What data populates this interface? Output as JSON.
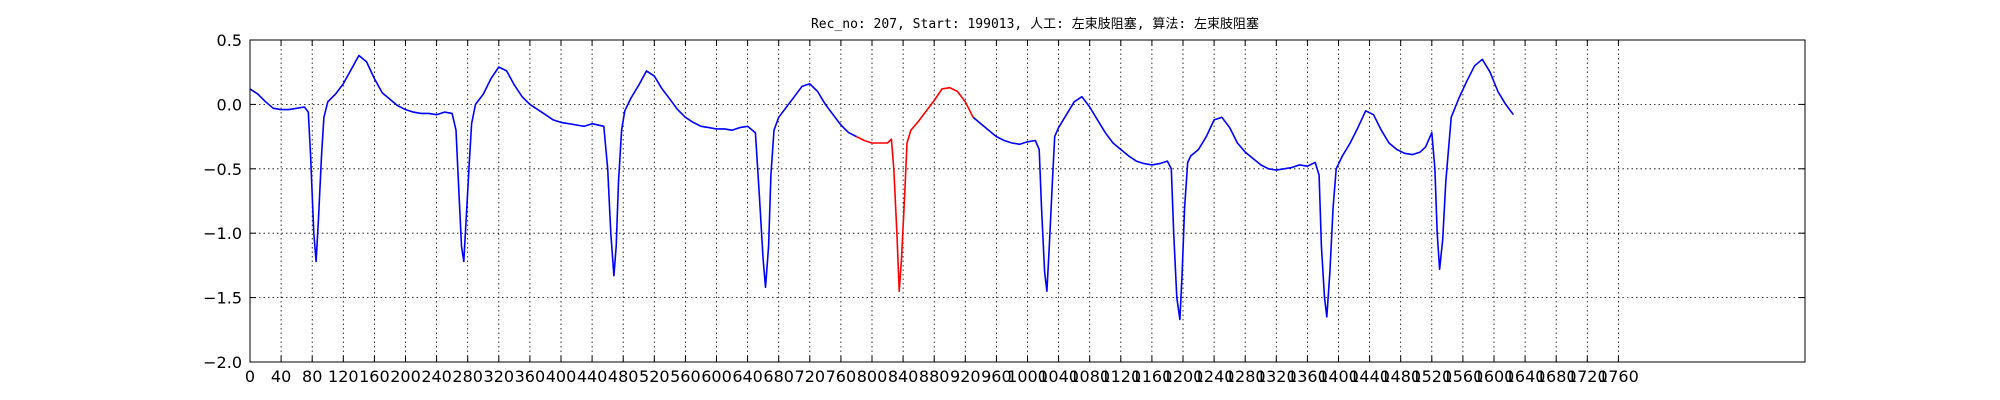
{
  "chart_data": {
    "type": "line",
    "title": "Rec_no: 207, Start: 199013, 人工: 左束肢阻塞, 算法: 左束肢阻塞",
    "xlabel": "",
    "ylabel": "",
    "xlim": [
      0,
      2000
    ],
    "ylim": [
      -2.0,
      0.5
    ],
    "grid": true,
    "x_ticks": [
      0,
      40,
      80,
      120,
      160,
      200,
      240,
      280,
      320,
      360,
      400,
      440,
      480,
      520,
      560,
      600,
      640,
      680,
      720,
      760,
      800,
      840,
      880,
      920,
      960,
      1000,
      1040,
      1080,
      1120,
      1160,
      1200,
      1240,
      1280,
      1320,
      1360,
      1400,
      1440,
      1480,
      1520,
      1560,
      1600,
      1640,
      1680,
      1720,
      1760
    ],
    "x_tick_labels": [
      "0",
      "40",
      "80",
      "120",
      "160",
      "200",
      "240",
      "280",
      "320",
      "360",
      "400",
      "440",
      "480",
      "520",
      "560",
      "600",
      "640",
      "680",
      "720",
      "760",
      "800",
      "840",
      "880",
      "920",
      "960",
      "1000",
      "1040",
      "1080",
      "1120",
      "1160",
      "1200",
      "1240",
      "1280",
      "1320",
      "1360",
      "1400",
      "1440",
      "1480",
      "1520",
      "1560",
      "1600",
      "1640",
      "1680",
      "1720",
      "1760"
    ],
    "y_ticks": [
      0.5,
      0.0,
      -0.5,
      -1.0,
      -1.5,
      -2.0
    ],
    "y_tick_labels": [
      "0.5",
      "0.0",
      "−0.5",
      "−1.0",
      "−1.5",
      "−2.0"
    ],
    "series": [
      {
        "color": "#0000ff",
        "segment": "before",
        "x": [
          0,
          10,
          20,
          30,
          40,
          50,
          60,
          70,
          75,
          78,
          82,
          85,
          88,
          92,
          95,
          100,
          110,
          120,
          130,
          140,
          150,
          160,
          170,
          180,
          190,
          200,
          210,
          220,
          230,
          240,
          250,
          260,
          265,
          268,
          272,
          275,
          278,
          282,
          285,
          290,
          300,
          310,
          320,
          330,
          340,
          350,
          360,
          370,
          380,
          390,
          400,
          410,
          420,
          430,
          440,
          455,
          460,
          464,
          468,
          471,
          474,
          478,
          482,
          490,
          500,
          510,
          520,
          530,
          540,
          550,
          560,
          570,
          580,
          590,
          600,
          610,
          620,
          630,
          640,
          650,
          655,
          660,
          663,
          667,
          670,
          674,
          680,
          690,
          700,
          710,
          720,
          730,
          740,
          750,
          760,
          770,
          780
        ],
        "y": [
          0.12,
          0.08,
          0.02,
          -0.03,
          -0.04,
          -0.04,
          -0.03,
          -0.02,
          -0.06,
          -0.4,
          -1.0,
          -1.22,
          -0.9,
          -0.4,
          -0.1,
          0.02,
          0.08,
          0.16,
          0.27,
          0.38,
          0.33,
          0.2,
          0.09,
          0.04,
          -0.01,
          -0.04,
          -0.06,
          -0.07,
          -0.07,
          -0.08,
          -0.06,
          -0.07,
          -0.2,
          -0.6,
          -1.1,
          -1.22,
          -0.9,
          -0.45,
          -0.15,
          0.0,
          0.08,
          0.2,
          0.29,
          0.26,
          0.15,
          0.06,
          0.0,
          -0.04,
          -0.08,
          -0.12,
          -0.14,
          -0.15,
          -0.16,
          -0.17,
          -0.15,
          -0.17,
          -0.5,
          -1.0,
          -1.33,
          -1.1,
          -0.6,
          -0.2,
          -0.05,
          0.05,
          0.15,
          0.26,
          0.22,
          0.12,
          0.04,
          -0.04,
          -0.1,
          -0.14,
          -0.17,
          -0.18,
          -0.19,
          -0.19,
          -0.2,
          -0.18,
          -0.17,
          -0.22,
          -0.7,
          -1.2,
          -1.42,
          -1.1,
          -0.55,
          -0.2,
          -0.1,
          -0.02,
          0.06,
          0.14,
          0.16,
          0.1,
          0.0,
          -0.08,
          -0.16,
          -0.22,
          -0.25
        ]
      },
      {
        "color": "#ff0000",
        "segment": "highlighted",
        "x": [
          780,
          790,
          800,
          810,
          820,
          825,
          828,
          832,
          835,
          838,
          842,
          845,
          850,
          860,
          870,
          880,
          890,
          900,
          910,
          920,
          930
        ],
        "y": [
          -0.25,
          -0.28,
          -0.3,
          -0.3,
          -0.3,
          -0.27,
          -0.5,
          -1.0,
          -1.45,
          -1.2,
          -0.7,
          -0.3,
          -0.2,
          -0.13,
          -0.05,
          0.03,
          0.12,
          0.13,
          0.1,
          0.02,
          -0.1
        ]
      },
      {
        "color": "#0000ff",
        "segment": "after",
        "x": [
          930,
          940,
          950,
          960,
          970,
          980,
          990,
          1000,
          1010,
          1015,
          1018,
          1022,
          1025,
          1028,
          1032,
          1035,
          1040,
          1050,
          1060,
          1070,
          1080,
          1090,
          1100,
          1110,
          1120,
          1130,
          1140,
          1150,
          1160,
          1170,
          1180,
          1185,
          1188,
          1192,
          1196,
          1199,
          1202,
          1206,
          1210,
          1220,
          1230,
          1240,
          1250,
          1260,
          1270,
          1280,
          1290,
          1300,
          1310,
          1320,
          1330,
          1340,
          1350,
          1360,
          1370,
          1375,
          1378,
          1382,
          1385,
          1389,
          1393,
          1397,
          1405,
          1415,
          1425,
          1435,
          1445,
          1455,
          1465,
          1475,
          1485,
          1495,
          1505,
          1512,
          1520,
          1524,
          1527,
          1530,
          1534,
          1538,
          1545,
          1555,
          1565,
          1575,
          1585,
          1595,
          1605,
          1615,
          1625
        ],
        "y": [
          -0.1,
          -0.15,
          -0.2,
          -0.25,
          -0.28,
          -0.3,
          -0.31,
          -0.29,
          -0.28,
          -0.35,
          -0.8,
          -1.3,
          -1.45,
          -1.1,
          -0.6,
          -0.25,
          -0.18,
          -0.08,
          0.02,
          0.06,
          -0.02,
          -0.12,
          -0.22,
          -0.3,
          -0.35,
          -0.4,
          -0.44,
          -0.46,
          -0.47,
          -0.46,
          -0.44,
          -0.5,
          -1.0,
          -1.5,
          -1.67,
          -1.3,
          -0.8,
          -0.45,
          -0.4,
          -0.35,
          -0.25,
          -0.12,
          -0.1,
          -0.18,
          -0.3,
          -0.37,
          -0.42,
          -0.47,
          -0.5,
          -0.51,
          -0.5,
          -0.49,
          -0.47,
          -0.48,
          -0.45,
          -0.55,
          -1.1,
          -1.5,
          -1.65,
          -1.3,
          -0.8,
          -0.5,
          -0.4,
          -0.3,
          -0.18,
          -0.05,
          -0.08,
          -0.2,
          -0.3,
          -0.35,
          -0.38,
          -0.39,
          -0.37,
          -0.33,
          -0.22,
          -0.5,
          -1.0,
          -1.28,
          -1.05,
          -0.6,
          -0.1,
          0.05,
          0.18,
          0.3,
          0.35,
          0.25,
          0.1,
          0.0,
          -0.08
        ]
      }
    ]
  }
}
